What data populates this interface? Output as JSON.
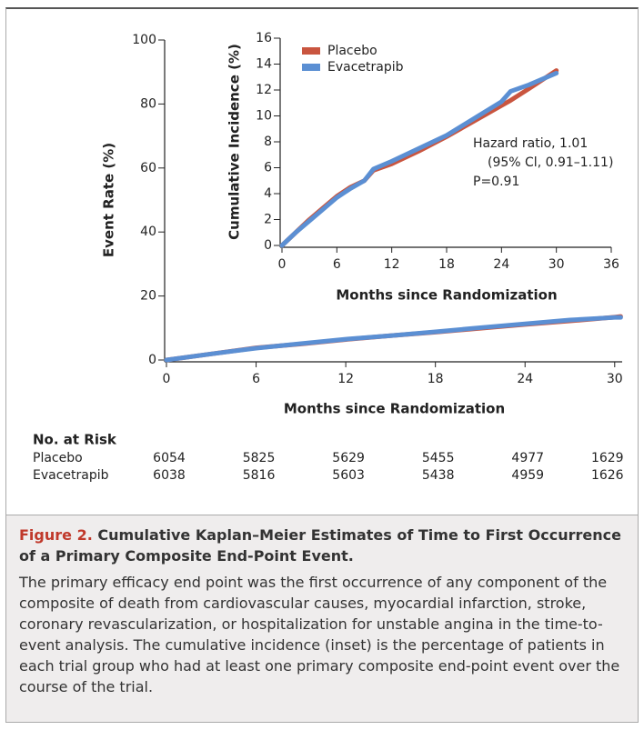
{
  "chart_data": [
    {
      "type": "line",
      "xlabel": "Months since Randomization",
      "ylabel": "Event Rate (%)",
      "x": [
        0,
        3,
        6,
        9,
        12,
        15,
        18,
        21,
        24,
        27,
        30,
        30.4
      ],
      "series": [
        {
          "color": "#c9553f",
          "values": [
            0,
            1.9,
            3.8,
            5.0,
            6.4,
            7.6,
            8.7,
            9.9,
            11.1,
            12.2,
            13.4,
            13.6
          ]
        },
        {
          "color": "#5b8fd3",
          "values": [
            0,
            1.9,
            3.7,
            5.1,
            6.5,
            7.6,
            8.8,
            10.1,
            11.3,
            12.5,
            13.3,
            13.3
          ]
        }
      ],
      "xlim": [
        0,
        30.5
      ],
      "ylim": [
        0,
        100
      ],
      "xticks": [
        0,
        6,
        12,
        18,
        24,
        30
      ],
      "yticks": [
        0,
        20,
        40,
        60,
        80,
        100
      ]
    },
    {
      "type": "line",
      "xlabel": "Months since Randomization",
      "ylabel": "Cumulative Incidence (%)",
      "x": [
        0,
        1.5,
        3,
        4.5,
        6,
        7.5,
        9,
        10,
        12,
        15,
        18,
        21,
        24,
        25,
        27,
        30
      ],
      "series": [
        {
          "name": "Placebo",
          "color": "#c9553f",
          "values": [
            0,
            1.0,
            2.0,
            2.9,
            3.8,
            4.5,
            5.0,
            5.8,
            6.3,
            7.3,
            8.4,
            9.6,
            10.8,
            11.2,
            12.1,
            13.5
          ]
        },
        {
          "name": "Evacetrapib",
          "color": "#5b8fd3",
          "values": [
            0,
            1.0,
            1.9,
            2.8,
            3.7,
            4.4,
            5.0,
            5.9,
            6.5,
            7.5,
            8.5,
            9.8,
            11.1,
            11.9,
            12.4,
            13.3
          ]
        }
      ],
      "xlim": [
        0,
        36
      ],
      "ylim": [
        0,
        16
      ],
      "xticks": [
        0,
        6,
        12,
        18,
        24,
        30,
        36
      ],
      "yticks": [
        0,
        2,
        4,
        6,
        8,
        10,
        12,
        14,
        16
      ],
      "legend": "upper left",
      "annotations": [
        "Hazard ratio, 1.01",
        "(95% Cl, 0.91–1.11)",
        "P=0.91"
      ]
    }
  ],
  "risk_table": {
    "title": "No. at Risk",
    "rows": [
      {
        "label": "Placebo",
        "values": [
          6054,
          5825,
          5629,
          5455,
          4977,
          1629
        ]
      },
      {
        "label": "Evacetrapib",
        "values": [
          6038,
          5816,
          5603,
          5438,
          4959,
          1626
        ]
      }
    ]
  },
  "caption": {
    "label": "Figure 2.",
    "title": "Cumulative Kaplan–Meier Estimates of Time to First Occurrence of a Primary Composite End-Point Event.",
    "text": "The primary efficacy end point was the first occurrence of any component of the composite of death from cardiovascular causes, myocardial infarction, stroke, coronary revascularization, or hospitalization for unstable angina in the time-to-event analysis. The cumulative incidence (inset) is the percentage of patients in each trial group who had at least one primary composite end-point event over the course of the trial."
  }
}
